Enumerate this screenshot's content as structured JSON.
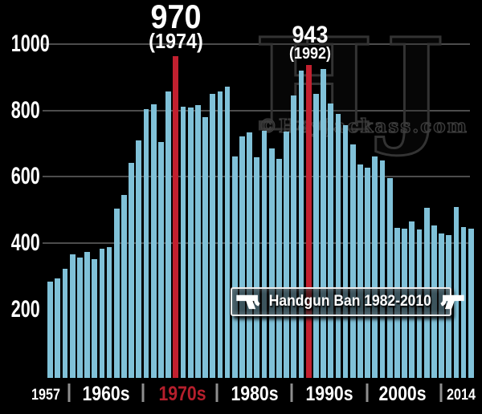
{
  "watermark": {
    "monogram": "HJ",
    "site": "©HeyJackass.com"
  },
  "annotations": {
    "peak1": {
      "value": "970",
      "year_label": "(1974)"
    },
    "peak2": {
      "value": "943",
      "year_label": "(1992)"
    }
  },
  "banner": {
    "label": "Handgun Ban 1982-2010",
    "icon": "pistol-icon"
  },
  "y_axis": {
    "ticks": [
      "1000",
      "800",
      "600",
      "400",
      "200"
    ]
  },
  "x_axis": {
    "labels": [
      "1957",
      "1960s",
      "1970s",
      "1980s",
      "1990s",
      "2000s",
      "2014"
    ]
  },
  "colors": {
    "background": "#000000",
    "bar": "#80c1d8",
    "highlight_bar": "#c2202f",
    "decade_red": "#b51f2c",
    "gridline": "#4c4c4c",
    "text": "#ffffff"
  },
  "chart_data": {
    "type": "bar",
    "x_start_year": 1957,
    "x_end_year": 2014,
    "x": [
      1957,
      1958,
      1959,
      1960,
      1961,
      1962,
      1963,
      1964,
      1965,
      1966,
      1967,
      1968,
      1969,
      1970,
      1971,
      1972,
      1973,
      1974,
      1975,
      1976,
      1977,
      1978,
      1979,
      1980,
      1981,
      1982,
      1983,
      1984,
      1985,
      1986,
      1987,
      1988,
      1989,
      1990,
      1991,
      1992,
      1993,
      1994,
      1995,
      1996,
      1997,
      1998,
      1999,
      2000,
      2001,
      2002,
      2003,
      2004,
      2005,
      2006,
      2007,
      2008,
      2009,
      2010,
      2011,
      2012,
      2013,
      2014
    ],
    "values": [
      290,
      300,
      330,
      372,
      362,
      380,
      359,
      390,
      395,
      510,
      552,
      647,
      715,
      810,
      824,
      711,
      864,
      970,
      818,
      814,
      823,
      787,
      856,
      863,
      877,
      668,
      729,
      741,
      666,
      744,
      691,
      660,
      742,
      851,
      927,
      943,
      855,
      931,
      828,
      796,
      761,
      704,
      643,
      633,
      667,
      656,
      601,
      453,
      451,
      471,
      448,
      513,
      459,
      436,
      430,
      516,
      455,
      450
    ],
    "highlighted_years": [
      1974,
      1992
    ],
    "peak_annotations": [
      {
        "year": 1974,
        "value": 970
      },
      {
        "year": 1992,
        "value": 943
      }
    ],
    "annotation_banner": "Handgun Ban 1982-2010",
    "title": "",
    "xlabel": "",
    "ylabel": "",
    "ylim": [
      0,
      1000
    ],
    "y_ticks": [
      200,
      400,
      600,
      800,
      1000
    ],
    "grid": "horizontal lines at 400, 600, 800, 1000",
    "legend": "none"
  }
}
